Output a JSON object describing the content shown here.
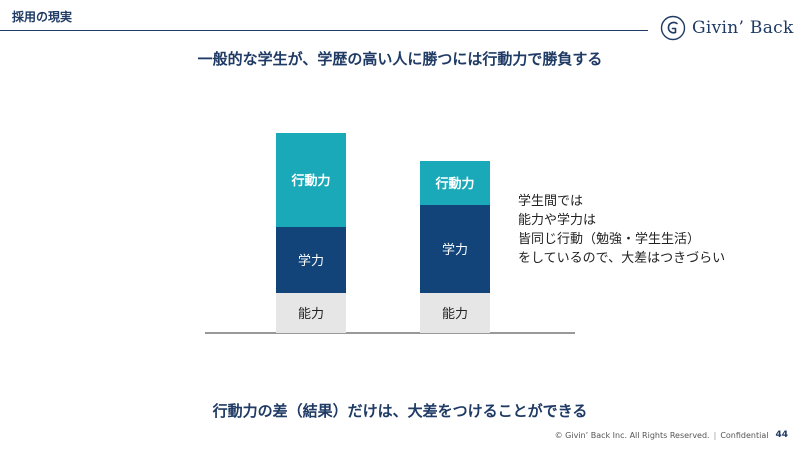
{
  "header": {
    "section_title": "採用の現実",
    "logo_text": "Givin’ Back"
  },
  "headline": "一般的な学生が、学歴の高い人に勝つには行動力で勝負する",
  "chart_data": {
    "type": "bar",
    "stacked": true,
    "categories": [
      "",
      ""
    ],
    "series": [
      {
        "name": "能力",
        "values": [
          1,
          1
        ],
        "color": "#e6e6e6",
        "text_color": "#222222"
      },
      {
        "name": "学力",
        "values": [
          1.65,
          2.2
        ],
        "color": "#12447a",
        "text_color": "#ffffff"
      },
      {
        "name": "行動力",
        "values": [
          2.35,
          1.1
        ],
        "color": "#1aa9b8",
        "text_color": "#ffffff"
      }
    ],
    "ylim": [
      0,
      5
    ],
    "grid": false
  },
  "note": {
    "lines": [
      "学生間では",
      "能力や学力は",
      "皆同じ行動（勉強・学生生活）",
      "をしているので、大差はつきづらい"
    ]
  },
  "conclusion": "行動力の差（結果）だけは、大差をつけることができる",
  "footer": {
    "copyright": "© Givin’ Back Inc. All Rights Reserved.",
    "separator": "|",
    "confidential": "Confidential",
    "page_number": "44"
  }
}
